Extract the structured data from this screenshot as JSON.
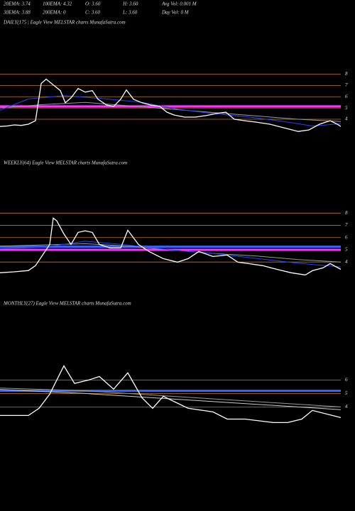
{
  "header": {
    "row1": [
      "20EMA: 3.74",
      "100EMA: 4.32",
      "O: 3.60",
      "H: 3.60",
      "Avg Vol: 0.001 M"
    ],
    "row2": [
      "30EMA: 3.88",
      "200EMA: 0",
      "C: 3.60",
      "L: 3.60",
      "Day Vol: 0  M"
    ]
  },
  "chart_data": [
    {
      "type": "line",
      "title": "DAILY(175                | Eagle  View  MELSTAR charts MunafaSutra.com",
      "ylim": [
        2.3,
        8.6
      ],
      "yticks": [
        8,
        7,
        6,
        5,
        4
      ],
      "xlim": [
        0,
        480
      ],
      "grid": true,
      "grid_color": "#c8781e",
      "levels": [
        {
          "value": 5.14,
          "color": "#ff33ff"
        }
      ],
      "series": [
        {
          "color": "#ffffff",
          "x": [
            0,
            10,
            20,
            30,
            40,
            50,
            58,
            65,
            75,
            85,
            92,
            100,
            110,
            120,
            130,
            138,
            150,
            160,
            170,
            178,
            188,
            200,
            212,
            225,
            235,
            245,
            260,
            275,
            290,
            305,
            318,
            330,
            345,
            360,
            380,
            400,
            420,
            435,
            450,
            465,
            475,
            480
          ],
          "values": [
            3.36,
            3.4,
            3.5,
            3.45,
            3.56,
            3.87,
            7.17,
            7.56,
            7.05,
            6.54,
            5.46,
            5.9,
            6.73,
            6.41,
            6.54,
            5.78,
            5.27,
            5.14,
            5.78,
            6.6,
            5.78,
            5.46,
            5.27,
            5.14,
            4.63,
            4.38,
            4.19,
            4.19,
            4.32,
            4.51,
            4.63,
            4.0,
            3.87,
            3.75,
            3.56,
            3.24,
            2.92,
            3.05,
            3.56,
            3.87,
            3.56,
            3.36
          ]
        },
        {
          "color": "#2244ff",
          "x": [
            0,
            40,
            90,
            150,
            200,
            250,
            300,
            350,
            400,
            440,
            480
          ],
          "values": [
            4.8,
            5.8,
            6.1,
            5.8,
            5.5,
            4.9,
            4.5,
            4.2,
            3.8,
            3.4,
            3.6
          ]
        },
        {
          "color": "#999999",
          "x": [
            0,
            60,
            120,
            180,
            240,
            300,
            360,
            420,
            480
          ],
          "values": [
            5.0,
            5.3,
            5.5,
            5.2,
            4.9,
            4.6,
            4.3,
            4.0,
            3.8
          ]
        }
      ]
    },
    {
      "type": "line",
      "title": "WEEKLY(64) Eagle  View  MELSTAR charts MunafaSutra.com",
      "ylim": [
        2.5,
        8.6
      ],
      "yticks": [
        8,
        7,
        6,
        5,
        4
      ],
      "xlim": [
        0,
        480
      ],
      "grid": true,
      "grid_color": "#c8781e",
      "levels": [
        {
          "value": 5.0,
          "color": "#ff33ff"
        },
        {
          "value": 5.25,
          "color": "#3366ff"
        }
      ],
      "series": [
        {
          "color": "#ffffff",
          "x": [
            0,
            20,
            40,
            50,
            60,
            70,
            75,
            80,
            90,
            100,
            110,
            120,
            130,
            140,
            155,
            170,
            180,
            195,
            210,
            230,
            250,
            265,
            280,
            300,
            320,
            335,
            350,
            370,
            390,
            410,
            430,
            440,
            455,
            465,
            480
          ],
          "values": [
            3.12,
            3.2,
            3.3,
            3.7,
            4.57,
            5.44,
            7.6,
            7.36,
            6.3,
            5.44,
            6.43,
            6.55,
            6.43,
            5.44,
            5.15,
            5.15,
            6.6,
            5.44,
            4.86,
            4.28,
            3.99,
            4.28,
            4.86,
            4.45,
            4.57,
            3.99,
            3.87,
            3.7,
            3.4,
            3.12,
            2.94,
            3.29,
            3.52,
            3.87,
            3.4
          ]
        },
        {
          "color": "#2244ff",
          "x": [
            0,
            60,
            120,
            180,
            240,
            300,
            360,
            420,
            480
          ],
          "values": [
            5.1,
            5.2,
            5.7,
            5.4,
            5.0,
            4.7,
            4.3,
            3.9,
            3.6
          ]
        },
        {
          "color": "#999999",
          "x": [
            0,
            60,
            120,
            180,
            240,
            300,
            360,
            420,
            480
          ],
          "values": [
            5.3,
            5.4,
            5.5,
            5.3,
            5.0,
            4.7,
            4.5,
            4.2,
            4.0
          ]
        }
      ]
    },
    {
      "type": "line",
      "title": "MONTHLY(27) Eagle  View  MELSTAR charts MunafaSutra.com",
      "ylim": [
        2.6,
        7.6
      ],
      "yticks": [
        6,
        5,
        4
      ],
      "xlim": [
        0,
        480
      ],
      "grid": true,
      "grid_color": "#c8781e",
      "levels": [
        {
          "value": 5.2,
          "color": "#3366ff"
        }
      ],
      "series": [
        {
          "color": "#ffffff",
          "x": [
            0,
            40,
            55,
            70,
            90,
            105,
            125,
            140,
            160,
            180,
            200,
            215,
            230,
            265,
            300,
            320,
            345,
            385,
            405,
            425,
            440,
            480
          ],
          "values": [
            3.37,
            3.37,
            3.9,
            4.95,
            7.05,
            5.74,
            6.0,
            6.26,
            5.32,
            6.53,
            4.68,
            3.9,
            4.79,
            3.9,
            3.63,
            3.1,
            3.1,
            2.84,
            2.84,
            3.1,
            3.74,
            3.21
          ]
        },
        {
          "color": "#999999",
          "x": [
            0,
            120,
            240,
            360,
            480
          ],
          "values": [
            5.4,
            5.2,
            4.8,
            4.4,
            4.0
          ]
        },
        {
          "color": "#cccccc",
          "x": [
            0,
            120,
            240,
            360,
            480
          ],
          "values": [
            5.3,
            5.0,
            4.6,
            4.2,
            3.8
          ]
        }
      ]
    }
  ]
}
